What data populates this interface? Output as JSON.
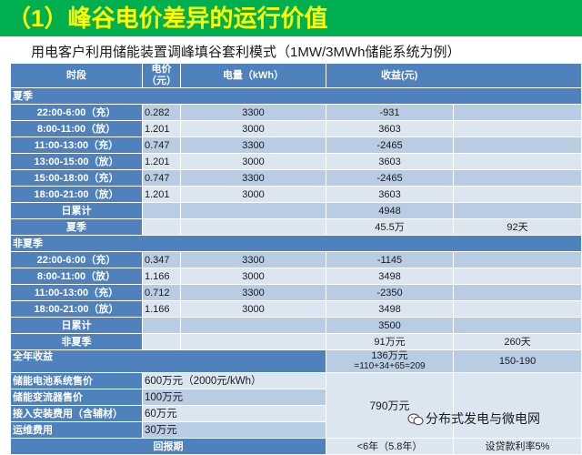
{
  "title": "（1）峰谷电价差异的运行价值",
  "subtitle": "用电客户利用储能装置调峰填谷套利模式（1MW/3MWh储能系统为例）",
  "headers": {
    "period": "时段",
    "price": "电价（元）",
    "energy": "电量（kWh）",
    "income": "收益(元)"
  },
  "summer": {
    "label": "夏季",
    "rows": [
      {
        "period": "22:00-6:00（充）",
        "price": "0.282",
        "energy": "3300",
        "income": "-931"
      },
      {
        "period": "8:00-11:00（放）",
        "price": "1.201",
        "energy": "3000",
        "income": "3603"
      },
      {
        "period": "11:00-13:00（充）",
        "price": "0.747",
        "energy": "3300",
        "income": "-2465"
      },
      {
        "period": "13:00-15:00（放）",
        "price": "1.201",
        "energy": "3000",
        "income": "3603"
      },
      {
        "period": "15:00-18:00（充）",
        "price": "0.747",
        "energy": "3300",
        "income": "-2465"
      },
      {
        "period": "18:00-21:00（放）",
        "price": "1.201",
        "energy": "3000",
        "income": "3603"
      }
    ],
    "daily_label": "日累计",
    "daily": "4948",
    "total_label": "夏季",
    "total": "45.5万",
    "days": "92天"
  },
  "nonsummer": {
    "label": "非夏季",
    "rows": [
      {
        "period": "22:00-6:00（充）",
        "price": "0.347",
        "energy": "3300",
        "income": "-1145"
      },
      {
        "period": "8:00-11:00（放）",
        "price": "1.166",
        "energy": "3000",
        "income": "3498"
      },
      {
        "period": "11:00-13:00（充）",
        "price": "0.712",
        "energy": "3300",
        "income": "-2350"
      },
      {
        "period": "18:00-21:00（放）",
        "price": "1.166",
        "energy": "3000",
        "income": "3498"
      }
    ],
    "daily_label": "日累计",
    "daily": "3500",
    "total_label": "非夏季",
    "total": "91万元",
    "days": "260天"
  },
  "annual": {
    "label": "全年收益",
    "value": "136万元",
    "formula": "=110+34+65=209",
    "range": "150-190"
  },
  "costs": [
    {
      "label": "储能电池系统售价",
      "value": "600万元（2000元/kWh）"
    },
    {
      "label": "储能变流器售价",
      "value": "100万元"
    },
    {
      "label": "接入安装费用（含辅材）",
      "value": "60万元"
    },
    {
      "label": "运维费用",
      "value": "30万元"
    }
  ],
  "cost_total": "790万元",
  "payback": {
    "label": "回报期",
    "value": "<6年（5.8年）",
    "note": "设贷款利率5%"
  },
  "watermark": "分布式发电与微电网"
}
